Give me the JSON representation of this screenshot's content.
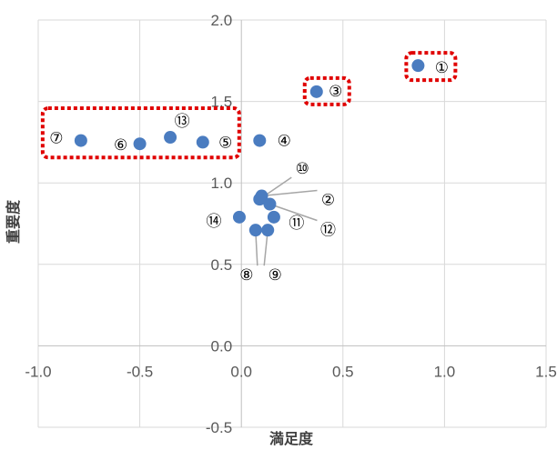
{
  "chart_data": {
    "type": "scatter",
    "xlabel": "満足度",
    "ylabel": "重要度",
    "xlim": [
      -1.0,
      1.5
    ],
    "ylim": [
      -0.5,
      2.0
    ],
    "x_ticks": [
      "-1.0",
      "-0.5",
      "0.0",
      "0.5",
      "1.0",
      "1.5"
    ],
    "y_ticks": [
      "-0.5",
      "0.0",
      "0.5",
      "1.0",
      "1.5",
      "2.0"
    ],
    "grid": true,
    "marker_color": "#4a7cc0",
    "highlight_color": "#e00000",
    "points": [
      {
        "label": "①",
        "x": 0.87,
        "y": 1.72
      },
      {
        "label": "②",
        "x": 0.1,
        "y": 0.92
      },
      {
        "label": "③",
        "x": 0.37,
        "y": 1.56
      },
      {
        "label": "④",
        "x": 0.09,
        "y": 1.26
      },
      {
        "label": "⑤",
        "x": -0.19,
        "y": 1.25
      },
      {
        "label": "⑥",
        "x": -0.5,
        "y": 1.24
      },
      {
        "label": "⑦",
        "x": -0.79,
        "y": 1.26
      },
      {
        "label": "⑧",
        "x": 0.07,
        "y": 0.71
      },
      {
        "label": "⑨",
        "x": 0.13,
        "y": 0.71
      },
      {
        "label": "⑩",
        "x": 0.09,
        "y": 0.9
      },
      {
        "label": "⑪",
        "x": 0.16,
        "y": 0.79
      },
      {
        "label": "⑫",
        "x": 0.14,
        "y": 0.87
      },
      {
        "label": "⑬",
        "x": -0.35,
        "y": 1.28
      },
      {
        "label": "⑭",
        "x": -0.01,
        "y": 0.79
      }
    ],
    "highlight_groups": [
      [
        "①"
      ],
      [
        "③"
      ],
      [
        "⑦",
        "⑥",
        "⑬",
        "⑤"
      ]
    ]
  }
}
